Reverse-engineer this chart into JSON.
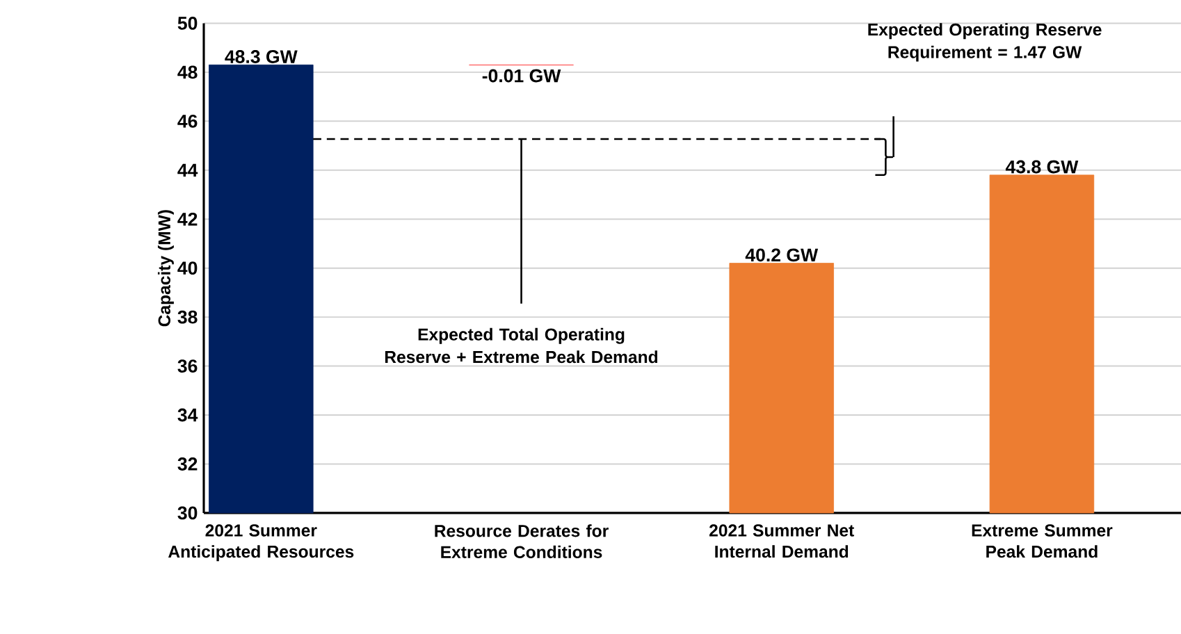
{
  "chart_data": {
    "type": "bar",
    "ylabel": "Capacity (MW)",
    "categories": [
      "2021 Summer Anticipated Resources",
      "Resource Derates for Extreme Conditions",
      "2021 Summer Net Internal Demand",
      "Extreme Summer Peak Demand"
    ],
    "values": [
      48.3,
      -0.01,
      40.2,
      43.8
    ],
    "base": [
      null,
      48.3,
      null,
      null
    ],
    "colors": [
      "#002060",
      "#ff5050",
      "#ed7d31",
      "#ed7d31"
    ],
    "value_labels": [
      "48.3 GW",
      "-0.01 GW",
      "40.2 GW",
      "43.8 GW"
    ],
    "ylim": [
      30,
      50
    ],
    "yticks": [
      30,
      32,
      34,
      36,
      38,
      40,
      42,
      44,
      46,
      48,
      50
    ],
    "grid": "y",
    "ref_lines": [
      {
        "axis": "y",
        "value": 45.27,
        "label": "Expected Total Operating Reserve + Extreme Peak Demand",
        "line_style": "dashed",
        "color": "#000000"
      }
    ],
    "annotations": [
      "Expected Operating Reserve Requirement = 1.47 GW"
    ]
  }
}
